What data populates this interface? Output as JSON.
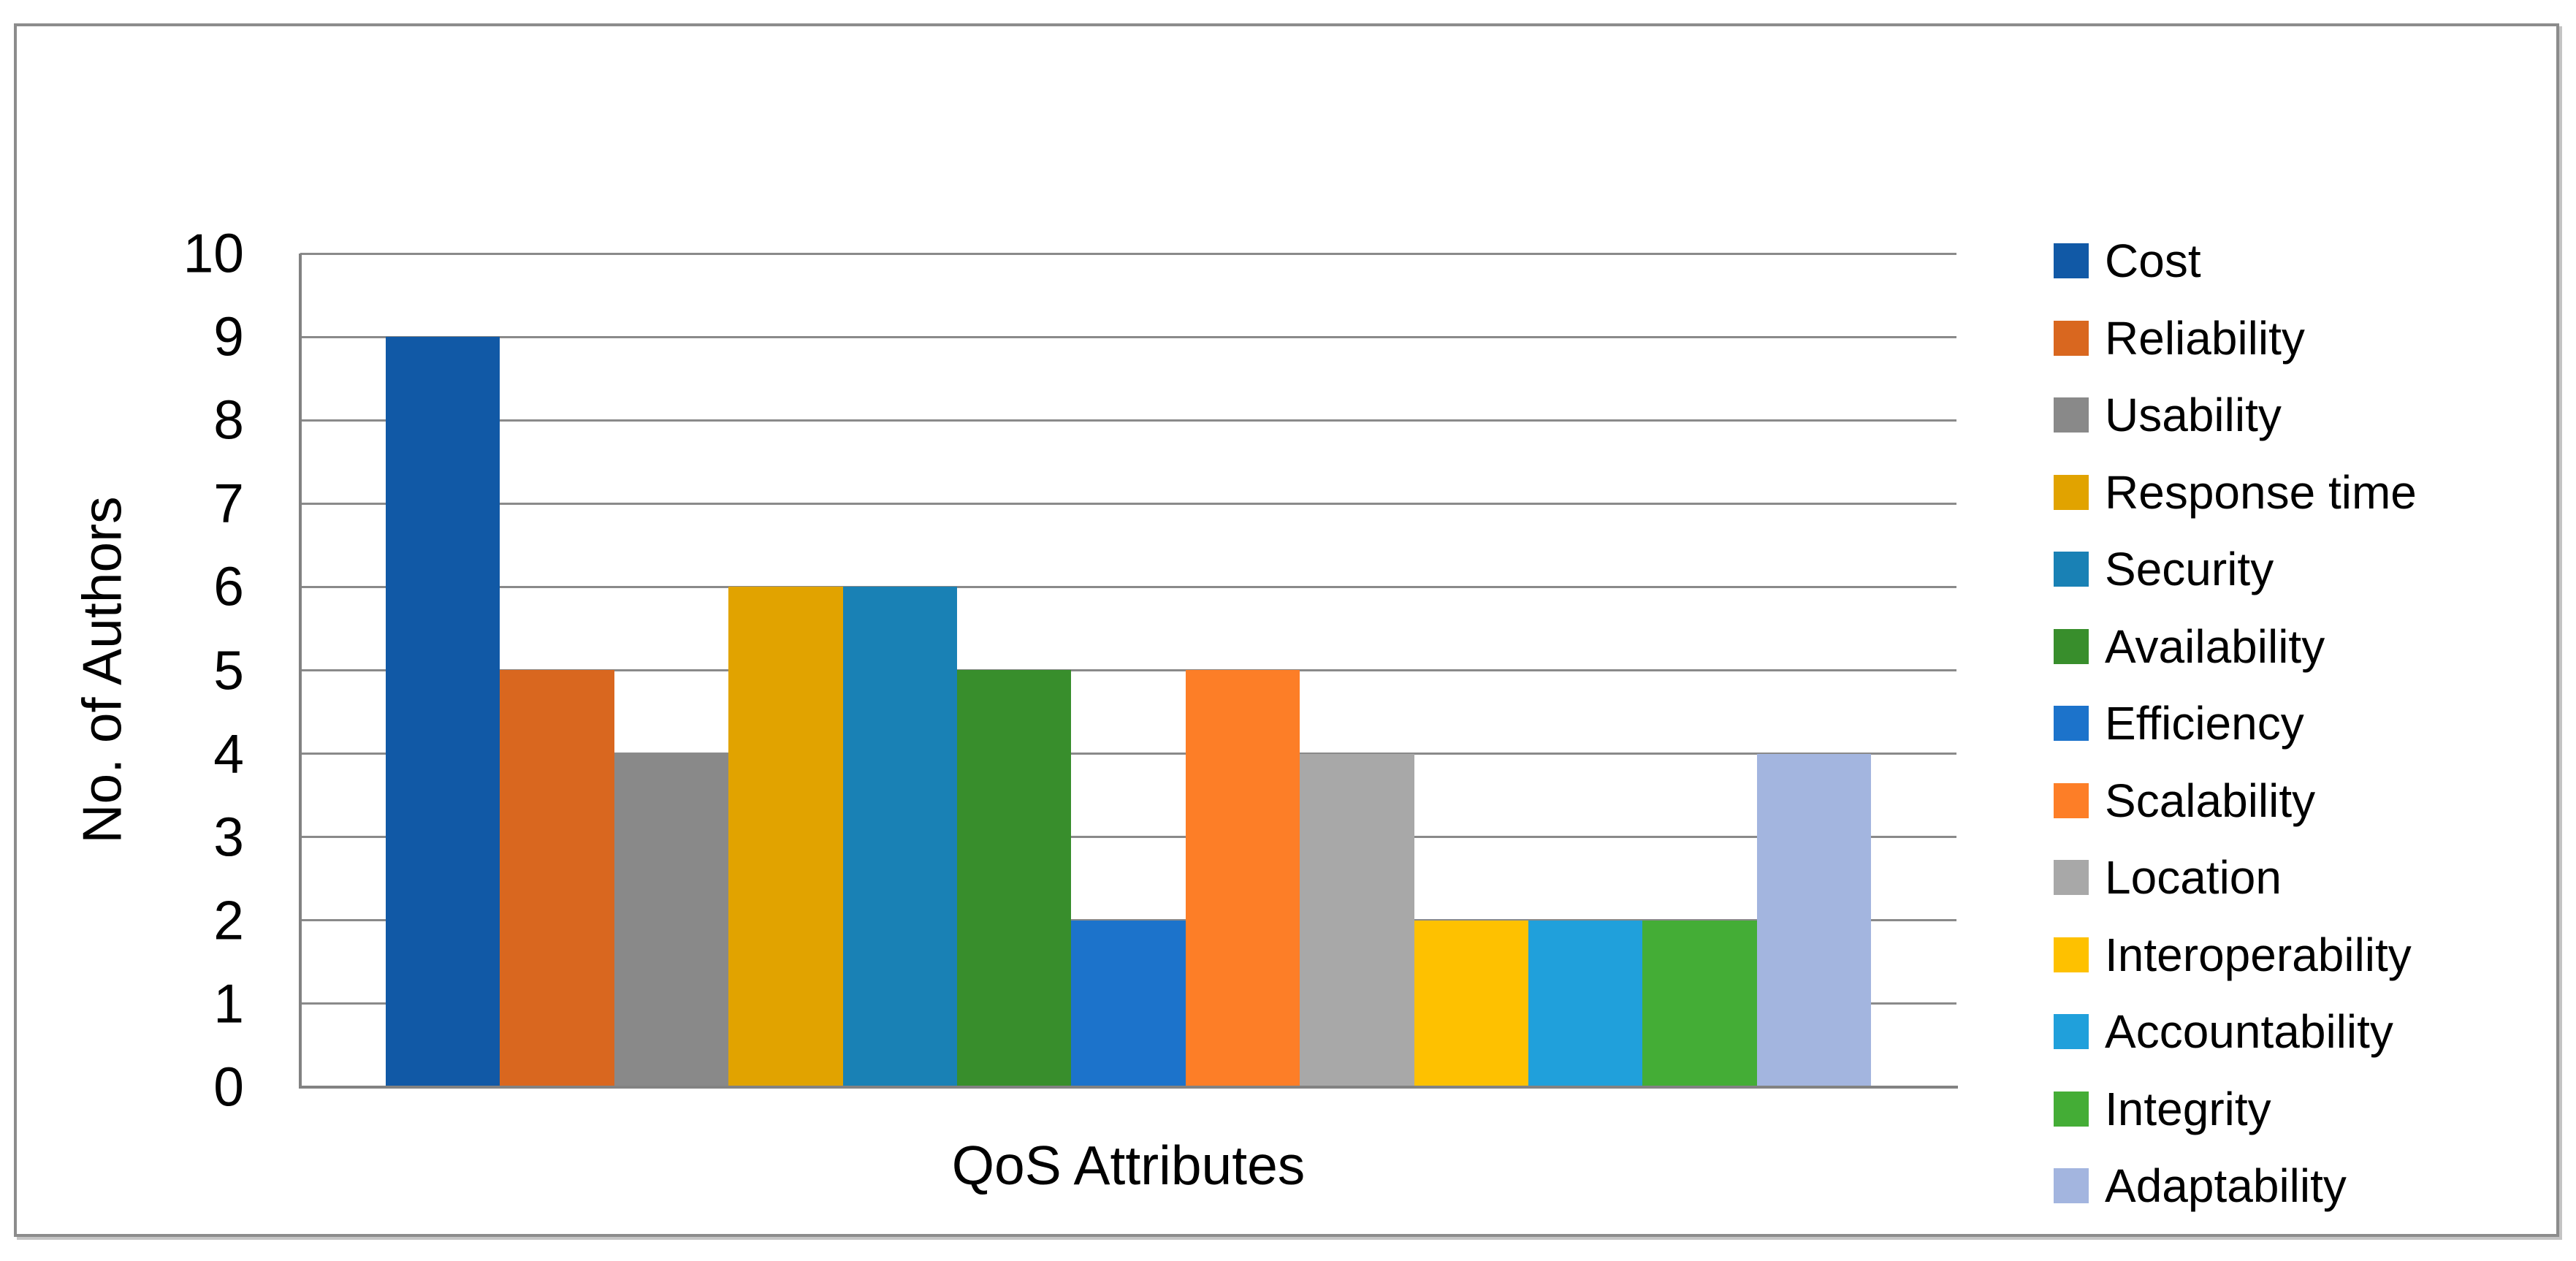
{
  "chart_data": {
    "type": "bar",
    "title": "",
    "xlabel": "QoS Attributes",
    "ylabel": "No. of Authors",
    "categories": [
      "Cost",
      "Reliability",
      "Usability",
      "Response time",
      "Security",
      "Availability",
      "Efficiency",
      "Scalability",
      "Location",
      "Interoperability",
      "Accountability",
      "Integrity",
      "Adaptability"
    ],
    "values": [
      9,
      5,
      4,
      6,
      6,
      5,
      2,
      5,
      4,
      2,
      2,
      2,
      4
    ],
    "colors": [
      "#1159A6",
      "#D9671F",
      "#898989",
      "#E1A300",
      "#1981B5",
      "#388E2C",
      "#1C73CB",
      "#FD7E27",
      "#A8A8A8",
      "#FEC100",
      "#20A0DB",
      "#44AD36",
      "#A3B5DF"
    ],
    "yticks": [
      0,
      1,
      2,
      3,
      4,
      5,
      6,
      7,
      8,
      9,
      10
    ],
    "ylim": [
      0,
      10
    ],
    "grid": "horizontal",
    "gridline_color": "#8A8A8A",
    "axis_line_color": "#828282",
    "frame_border_color": "#8C8C8C",
    "legend_position": "right",
    "legend_items": [
      "Cost",
      "Reliability",
      "Usability",
      "Response time",
      "Security",
      "Availability",
      "Efficiency",
      "Scalability",
      "Location",
      "Interoperability",
      "Accountability",
      "Integrity",
      "Adaptability"
    ]
  }
}
